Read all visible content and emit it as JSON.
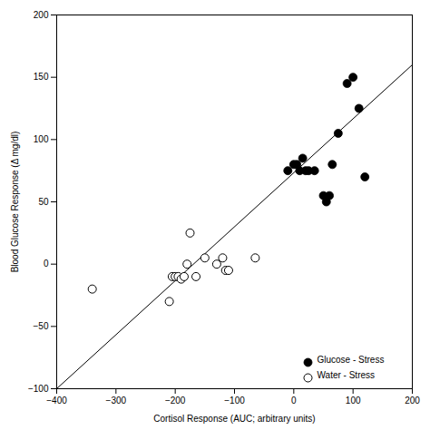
{
  "chart_data": {
    "type": "scatter",
    "xlabel": "Cortisol Response (AUC; arbitrary units)",
    "ylabel": "Blood Glucose Response (Δ mg/dl)",
    "series": [
      {
        "type": "line",
        "color": "black",
        "line_style": "solid",
        "x": [
          -400,
          200
        ],
        "values": [
          -100,
          160
        ]
      },
      {
        "name": "Glucose - Stress",
        "type": "scatter",
        "color": "black",
        "marker": "circle",
        "x": [
          -10,
          0,
          5,
          10,
          15,
          20,
          25,
          35,
          50,
          55,
          60,
          65,
          75,
          90,
          100,
          110,
          120
        ],
        "values": [
          75,
          80,
          80,
          75,
          85,
          75,
          75,
          75,
          55,
          50,
          55,
          80,
          105,
          145,
          150,
          125,
          70
        ]
      },
      {
        "name": "Water - Stress",
        "type": "scatter",
        "color": "black",
        "marker": "open_circle",
        "x": [
          -340,
          -210,
          -205,
          -200,
          -195,
          -190,
          -185,
          -180,
          -175,
          -165,
          -150,
          -130,
          -120,
          -115,
          -110,
          -65
        ],
        "values": [
          -20,
          -30,
          -10,
          -10,
          -10,
          -12,
          -10,
          0,
          25,
          -10,
          5,
          0,
          5,
          -5,
          -5,
          5
        ]
      }
    ],
    "xlim": [
      -400,
      200
    ],
    "ylim": [
      -100,
      200
    ],
    "xticks": [
      -400,
      -300,
      -200,
      -100,
      0,
      100,
      200
    ],
    "yticks": [
      -100,
      -50,
      0,
      50,
      100,
      150,
      200
    ],
    "grid": false,
    "legend": "lower right"
  }
}
